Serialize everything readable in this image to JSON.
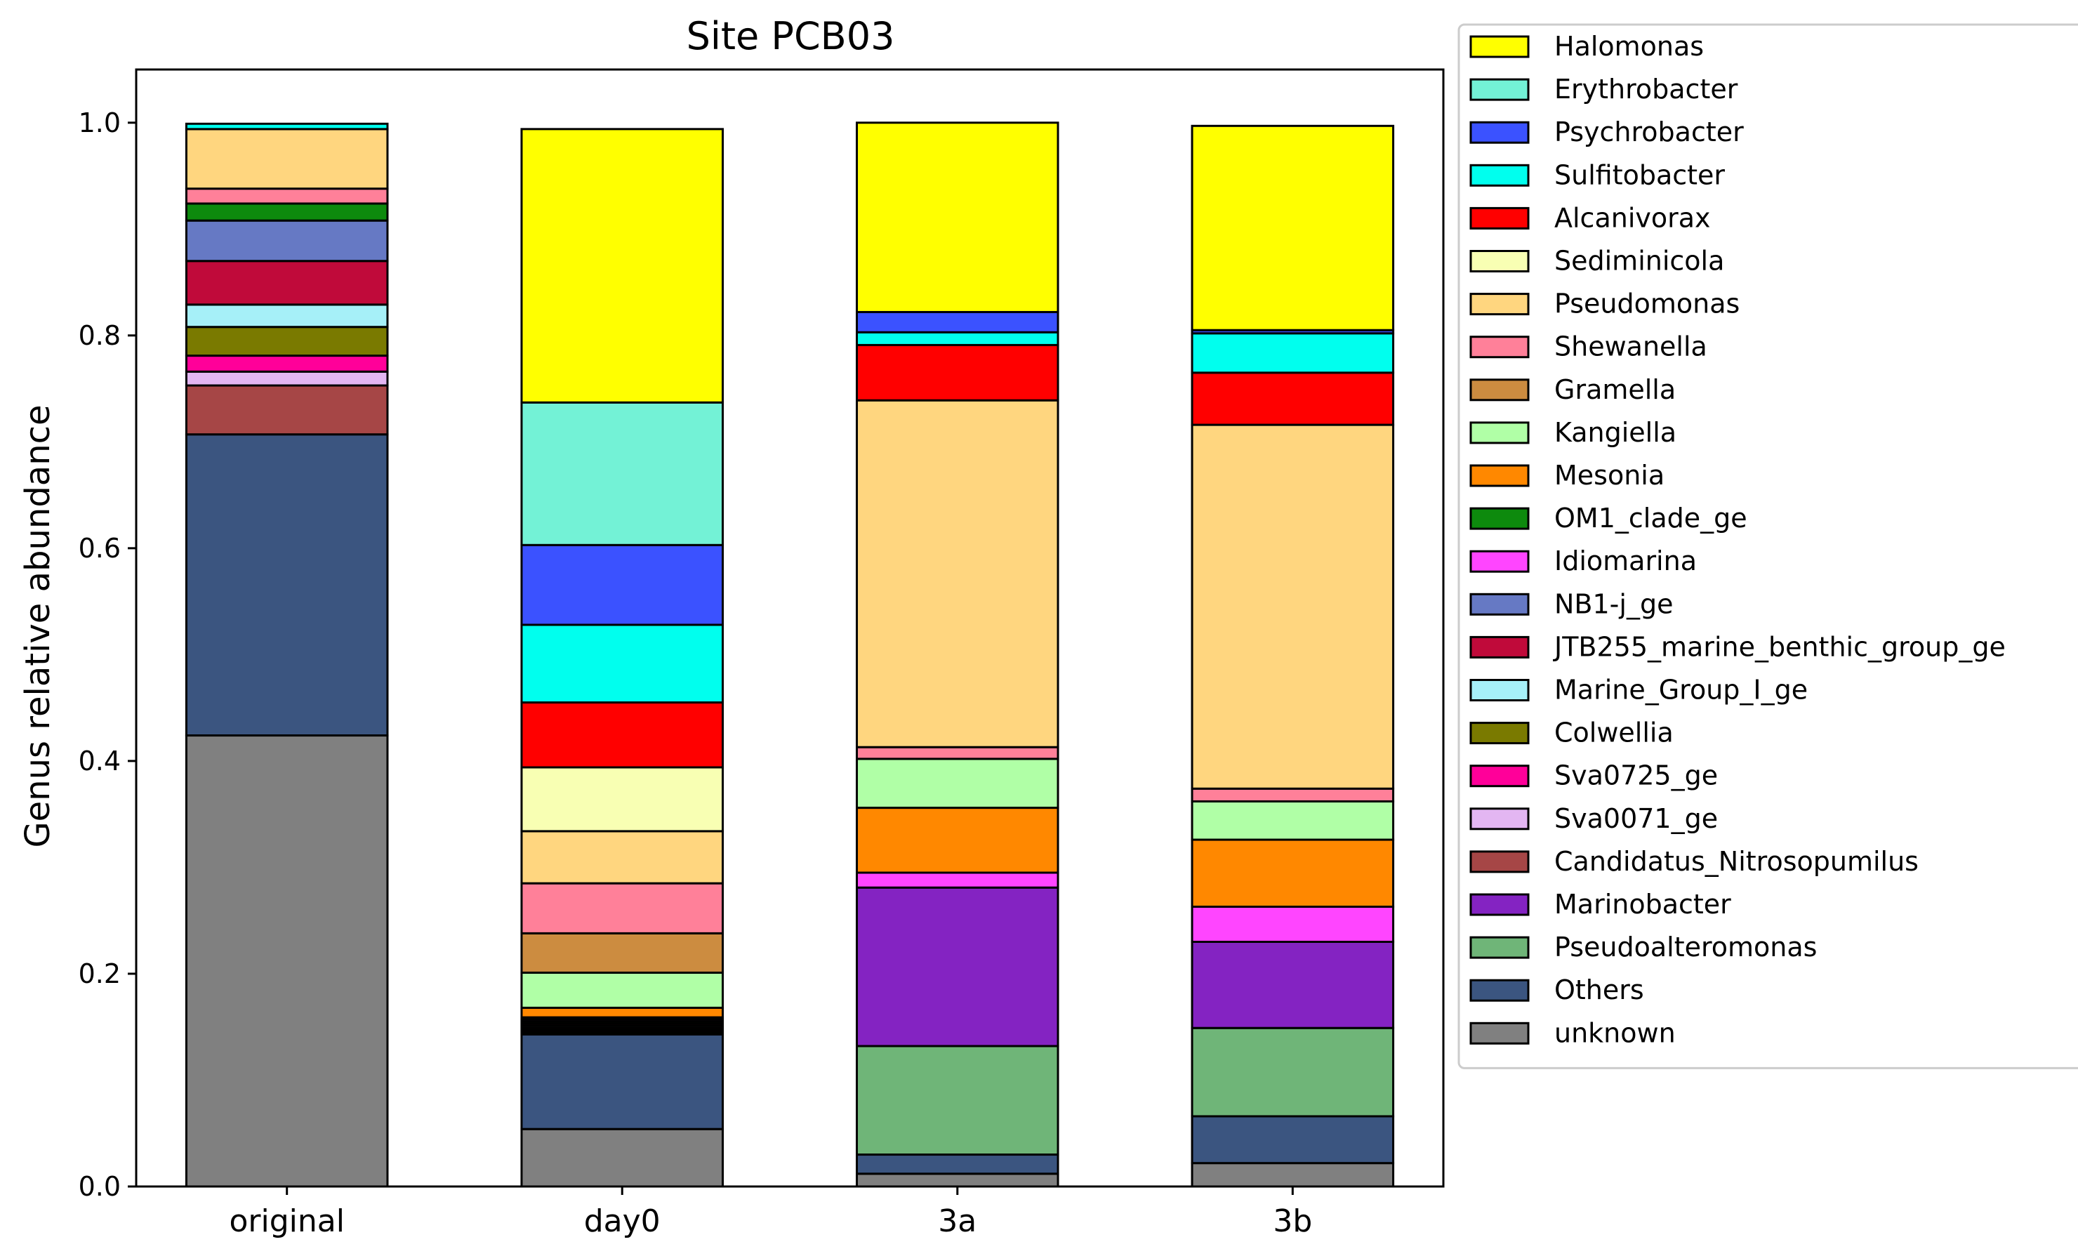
{
  "chart_data": {
    "type": "bar",
    "stacked": true,
    "title": "Site PCB03",
    "xlabel": "",
    "ylabel": "Genus relative abundance",
    "ylim": [
      0,
      1.05
    ],
    "yticks": [
      "0.0",
      "0.2",
      "0.4",
      "0.6",
      "0.8",
      "1.0"
    ],
    "categories": [
      "original",
      "day0",
      "3a",
      "3b"
    ],
    "legend_position": "outside-right",
    "series": [
      {
        "name": "unknown",
        "color": "#808080",
        "values": [
          0.424,
          0.054,
          0.012,
          0.022
        ]
      },
      {
        "name": "Others",
        "color": "#3b5580",
        "values": [
          0.283,
          0.089,
          0.018,
          0.044
        ]
      },
      {
        "name": "Pseudoalteromonas",
        "color": "#6fb578",
        "values": [
          0.0,
          0.002,
          0.102,
          0.083
        ]
      },
      {
        "name": "Marinobacter",
        "color": "#8423c2",
        "values": [
          0.0,
          0.002,
          0.149,
          0.081
        ]
      },
      {
        "name": "Candidatus_Nitrosopumilus",
        "color": "#a64646",
        "values": [
          0.046,
          0.002,
          0.0,
          0.0
        ]
      },
      {
        "name": "Sva0071_ge",
        "color": "#e3b6f2",
        "values": [
          0.013,
          0.002,
          0.0,
          0.0
        ]
      },
      {
        "name": "Sva0725_ge",
        "color": "#ff0099",
        "values": [
          0.015,
          0.002,
          0.0,
          0.0
        ]
      },
      {
        "name": "Colwellia",
        "color": "#7a7a00",
        "values": [
          0.027,
          0.002,
          0.0,
          0.0
        ]
      },
      {
        "name": "Marine_Group_I_ge",
        "color": "#a6f0f8",
        "values": [
          0.021,
          0.0,
          0.0,
          0.0
        ]
      },
      {
        "name": "JTB255_marine_benthic_group_ge",
        "color": "#c00a3a",
        "values": [
          0.041,
          0.0,
          0.0,
          0.0
        ]
      },
      {
        "name": "NB1-j_ge",
        "color": "#6679c4",
        "values": [
          0.038,
          0.0,
          0.0,
          0.0
        ]
      },
      {
        "name": "Idiomarina",
        "color": "#ff45ff",
        "values": [
          0.0,
          0.002,
          0.014,
          0.033
        ]
      },
      {
        "name": "OM1_clade_ge",
        "color": "#0d8a0d",
        "values": [
          0.016,
          0.002,
          0.0,
          0.0
        ]
      },
      {
        "name": "Mesonia",
        "color": "#ff8800",
        "values": [
          0.0,
          0.009,
          0.061,
          0.063
        ]
      },
      {
        "name": "Kangiella",
        "color": "#b0ffa6",
        "values": [
          0.0,
          0.033,
          0.046,
          0.036
        ]
      },
      {
        "name": "Gramella",
        "color": "#cc8c40",
        "values": [
          0.0,
          0.037,
          0.0,
          0.0
        ]
      },
      {
        "name": "Shewanella",
        "color": "#ff8099",
        "values": [
          0.014,
          0.047,
          0.011,
          0.012
        ]
      },
      {
        "name": "Pseudomonas",
        "color": "#ffd67f",
        "values": [
          0.056,
          0.049,
          0.326,
          0.342
        ]
      },
      {
        "name": "Sediminicola",
        "color": "#f8ffb3",
        "values": [
          0.0,
          0.06,
          0.0,
          0.0
        ]
      },
      {
        "name": "Alcanivorax",
        "color": "#ff0000",
        "values": [
          0.0,
          0.061,
          0.052,
          0.049
        ]
      },
      {
        "name": "Sulfitobacter",
        "color": "#00ffee",
        "values": [
          0.005,
          0.073,
          0.012,
          0.037
        ]
      },
      {
        "name": "Psychrobacter",
        "color": "#3b52ff",
        "values": [
          0.0,
          0.075,
          0.019,
          0.003
        ]
      },
      {
        "name": "Erythrobacter",
        "color": "#73f2d6",
        "values": [
          0.0,
          0.134,
          0.0,
          0.0
        ]
      },
      {
        "name": "Halomonas",
        "color": "#ffff00",
        "values": [
          0.0,
          0.257,
          0.178,
          0.192
        ]
      }
    ],
    "legend_order": [
      "Halomonas",
      "Erythrobacter",
      "Psychrobacter",
      "Sulfitobacter",
      "Alcanivorax",
      "Sediminicola",
      "Pseudomonas",
      "Shewanella",
      "Gramella",
      "Kangiella",
      "Mesonia",
      "OM1_clade_ge",
      "Idiomarina",
      "NB1-j_ge",
      "JTB255_marine_benthic_group_ge",
      "Marine_Group_I_ge",
      "Colwellia",
      "Sva0725_ge",
      "Sva0071_ge",
      "Candidatus_Nitrosopumilus",
      "Marinobacter",
      "Pseudoalteromonas",
      "Others",
      "unknown"
    ]
  }
}
